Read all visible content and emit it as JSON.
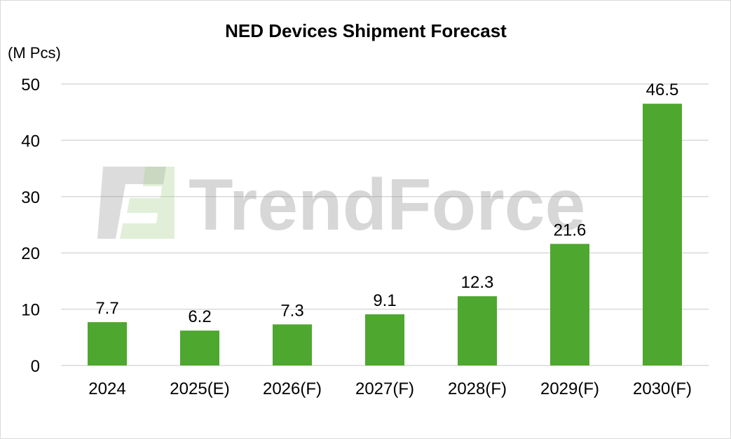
{
  "chart_data": {
    "type": "bar",
    "title": "NED Devices Shipment Forecast",
    "ylabel": "(M Pcs)",
    "xlabel": "",
    "ylim": [
      0,
      50
    ],
    "yticks": [
      "0",
      "10",
      "20",
      "30",
      "40",
      "50"
    ],
    "grid": true,
    "categories": [
      "2024",
      "2025(E)",
      "2026(F)",
      "2027(F)",
      "2028(F)",
      "2029(F)",
      "2030(F)"
    ],
    "values": [
      7.7,
      6.2,
      7.3,
      9.1,
      12.3,
      21.6,
      46.5
    ],
    "data_labels": [
      "7.7",
      "6.2",
      "7.3",
      "9.1",
      "12.3",
      "21.6",
      "46.5"
    ],
    "bar_color": "#4ea72e",
    "grid_color": "#d9d9d9"
  },
  "watermark": {
    "text": "TrendForce"
  }
}
